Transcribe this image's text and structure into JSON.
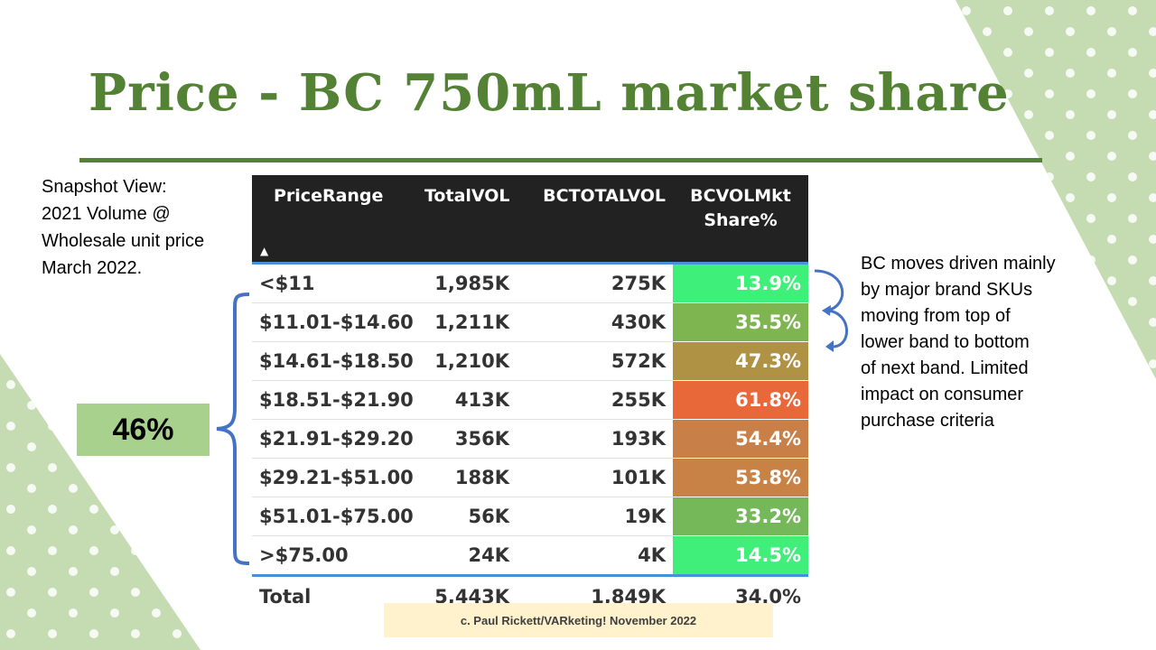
{
  "title": "Price - BC 750mL market share",
  "snapshot_lines": [
    "Snapshot View:",
    "2021 Volume @",
    "Wholesale unit price",
    "March 2022."
  ],
  "table": {
    "headers": {
      "price_range": "PriceRange",
      "total_vol": "TotalVOL",
      "bc_total_vol": "BCTOTALVOL",
      "share_line1": "BCVOLMkt",
      "share_line2": "Share%"
    },
    "rows": [
      {
        "price": "<$11",
        "total": "1,985K",
        "bc": "275K",
        "share": "13.9%",
        "color": "#3ef07a"
      },
      {
        "price": "$11.01-$14.60",
        "total": "1,211K",
        "bc": "430K",
        "share": "35.5%",
        "color": "#7fb550"
      },
      {
        "price": "$14.61-$18.50",
        "total": "1,210K",
        "bc": "572K",
        "share": "47.3%",
        "color": "#b09245"
      },
      {
        "price": "$18.51-$21.90",
        "total": "413K",
        "bc": "255K",
        "share": "61.8%",
        "color": "#e8683a"
      },
      {
        "price": "$21.91-$29.20",
        "total": "356K",
        "bc": "193K",
        "share": "54.4%",
        "color": "#c97f48"
      },
      {
        "price": "$29.21-$51.00",
        "total": "188K",
        "bc": "101K",
        "share": "53.8%",
        "color": "#c98246"
      },
      {
        "price": "$51.01-$75.00",
        "total": "56K",
        "bc": "19K",
        "share": "33.2%",
        "color": "#74b85a"
      },
      {
        "price": ">$75.00",
        "total": "24K",
        "bc": "4K",
        "share": "14.5%",
        "color": "#40ee7a"
      }
    ],
    "total": {
      "label": "Total",
      "total": "5,443K",
      "bc": "1,849K",
      "share": "34.0%"
    }
  },
  "bracket_percent": "46%",
  "note_lines": [
    "BC moves driven mainly",
    "by major brand SKUs",
    "moving from top of",
    "lower band to bottom",
    "of next band. Limited",
    "impact on consumer",
    "purchase criteria"
  ],
  "footer": "c. Paul Rickett/VARketing! November 2022",
  "colors": {
    "accent_green": "#548235",
    "light_green": "#a9d18e",
    "header_bg": "#222222",
    "arrow_blue": "#4472c4",
    "footer_bg": "#fff2cc"
  },
  "icons": {
    "sort": "sort-ascending-icon"
  }
}
